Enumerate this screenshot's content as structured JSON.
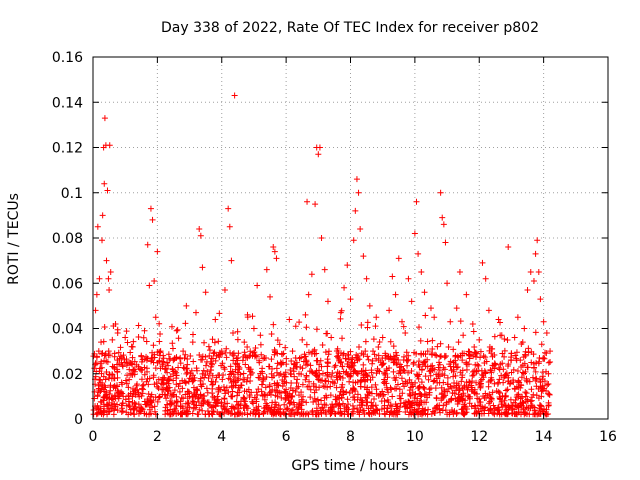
{
  "chart_data": {
    "type": "scatter",
    "title": "Day 338 of 2022, Rate Of TEC Index for receiver p802",
    "xlabel": "GPS time / hours",
    "ylabel": "ROTI / TECUs",
    "xlim": [
      0,
      16
    ],
    "ylim": [
      0,
      0.16
    ],
    "xticks": [
      0,
      2,
      4,
      6,
      8,
      10,
      12,
      14,
      16
    ],
    "xtick_labels": [
      "0",
      "2",
      "4",
      "6",
      "8",
      "10",
      "12",
      "14",
      "16"
    ],
    "yticks": [
      0,
      0.02,
      0.04,
      0.06,
      0.08,
      0.1,
      0.12,
      0.14,
      0.16
    ],
    "ytick_labels": [
      "0",
      "0.02",
      "0.04",
      "0.06",
      "0.08",
      "0.1",
      "0.12",
      "0.14",
      "0.16"
    ],
    "grid": true,
    "marker": "+",
    "color": "#ff0000",
    "data_x_range": [
      0,
      14.2
    ],
    "series": [
      {
        "name": "ROTI",
        "points": [
          [
            0.02,
            0.004
          ],
          [
            0.05,
            0.012
          ],
          [
            0.08,
            0.048
          ],
          [
            0.1,
            0.021
          ],
          [
            0.12,
            0.055
          ],
          [
            0.15,
            0.085
          ],
          [
            0.18,
            0.03
          ],
          [
            0.2,
            0.062
          ],
          [
            0.22,
            0.016
          ],
          [
            0.25,
            0.034
          ],
          [
            0.28,
            0.079
          ],
          [
            0.3,
            0.09
          ],
          [
            0.33,
            0.12
          ],
          [
            0.35,
            0.104
          ],
          [
            0.37,
            0.133
          ],
          [
            0.4,
            0.121
          ],
          [
            0.42,
            0.07
          ],
          [
            0.45,
            0.101
          ],
          [
            0.48,
            0.062
          ],
          [
            0.5,
            0.057
          ],
          [
            0.52,
            0.121
          ],
          [
            0.55,
            0.065
          ],
          [
            0.6,
            0.035
          ],
          [
            0.65,
            0.018
          ],
          [
            0.7,
            0.042
          ],
          [
            0.8,
            0.009
          ],
          [
            0.9,
            0.027
          ],
          [
            1.0,
            0.036
          ],
          [
            1.1,
            0.014
          ],
          [
            1.2,
            0.032
          ],
          [
            1.3,
            0.022
          ],
          [
            1.4,
            0.011
          ],
          [
            1.5,
            0.028
          ],
          [
            1.6,
            0.039
          ],
          [
            1.7,
            0.077
          ],
          [
            1.75,
            0.059
          ],
          [
            1.8,
            0.093
          ],
          [
            1.85,
            0.088
          ],
          [
            1.9,
            0.061
          ],
          [
            1.95,
            0.045
          ],
          [
            2.0,
            0.074
          ],
          [
            2.1,
            0.03
          ],
          [
            2.2,
            0.016
          ],
          [
            2.3,
            0.025
          ],
          [
            2.4,
            0.008
          ],
          [
            2.5,
            0.021
          ],
          [
            2.6,
            0.039
          ],
          [
            2.7,
            0.012
          ],
          [
            2.8,
            0.03
          ],
          [
            2.9,
            0.05
          ],
          [
            3.0,
            0.018
          ],
          [
            3.1,
            0.034
          ],
          [
            3.2,
            0.047
          ],
          [
            3.3,
            0.084
          ],
          [
            3.35,
            0.081
          ],
          [
            3.4,
            0.067
          ],
          [
            3.5,
            0.056
          ],
          [
            3.6,
            0.032
          ],
          [
            3.7,
            0.024
          ],
          [
            3.8,
            0.044
          ],
          [
            3.9,
            0.012
          ],
          [
            4.0,
            0.03
          ],
          [
            4.1,
            0.057
          ],
          [
            4.2,
            0.093
          ],
          [
            4.25,
            0.085
          ],
          [
            4.3,
            0.07
          ],
          [
            4.35,
            0.038
          ],
          [
            4.4,
            0.143
          ],
          [
            4.5,
            0.027
          ],
          [
            4.6,
            0.015
          ],
          [
            4.7,
            0.034
          ],
          [
            4.8,
            0.046
          ],
          [
            4.9,
            0.022
          ],
          [
            5.0,
            0.04
          ],
          [
            5.1,
            0.059
          ],
          [
            5.2,
            0.037
          ],
          [
            5.3,
            0.018
          ],
          [
            5.4,
            0.066
          ],
          [
            5.5,
            0.054
          ],
          [
            5.6,
            0.076
          ],
          [
            5.65,
            0.074
          ],
          [
            5.7,
            0.071
          ],
          [
            5.8,
            0.033
          ],
          [
            5.9,
            0.025
          ],
          [
            6.0,
            0.013
          ],
          [
            6.1,
            0.044
          ],
          [
            6.2,
            0.03
          ],
          [
            6.3,
            0.041
          ],
          [
            6.4,
            0.02
          ],
          [
            6.5,
            0.035
          ],
          [
            6.6,
            0.046
          ],
          [
            6.65,
            0.096
          ],
          [
            6.7,
            0.055
          ],
          [
            6.8,
            0.064
          ],
          [
            6.9,
            0.095
          ],
          [
            6.95,
            0.12
          ],
          [
            7.0,
            0.117
          ],
          [
            7.05,
            0.12
          ],
          [
            7.1,
            0.08
          ],
          [
            7.2,
            0.066
          ],
          [
            7.3,
            0.052
          ],
          [
            7.4,
            0.036
          ],
          [
            7.5,
            0.023
          ],
          [
            7.6,
            0.031
          ],
          [
            7.7,
            0.047
          ],
          [
            7.8,
            0.058
          ],
          [
            7.9,
            0.068
          ],
          [
            8.0,
            0.053
          ],
          [
            8.1,
            0.079
          ],
          [
            8.15,
            0.092
          ],
          [
            8.2,
            0.106
          ],
          [
            8.25,
            0.1
          ],
          [
            8.3,
            0.084
          ],
          [
            8.4,
            0.072
          ],
          [
            8.5,
            0.062
          ],
          [
            8.6,
            0.05
          ],
          [
            8.7,
            0.03
          ],
          [
            8.8,
            0.045
          ],
          [
            8.9,
            0.021
          ],
          [
            9.0,
            0.036
          ],
          [
            9.1,
            0.028
          ],
          [
            9.2,
            0.048
          ],
          [
            9.3,
            0.063
          ],
          [
            9.4,
            0.055
          ],
          [
            9.5,
            0.071
          ],
          [
            9.6,
            0.043
          ],
          [
            9.7,
            0.038
          ],
          [
            9.8,
            0.062
          ],
          [
            9.9,
            0.052
          ],
          [
            10.0,
            0.082
          ],
          [
            10.05,
            0.096
          ],
          [
            10.1,
            0.073
          ],
          [
            10.2,
            0.065
          ],
          [
            10.3,
            0.056
          ],
          [
            10.4,
            0.03
          ],
          [
            10.5,
            0.049
          ],
          [
            10.6,
            0.045
          ],
          [
            10.7,
            0.032
          ],
          [
            10.8,
            0.1
          ],
          [
            10.85,
            0.089
          ],
          [
            10.9,
            0.086
          ],
          [
            10.95,
            0.078
          ],
          [
            11.0,
            0.06
          ],
          [
            11.1,
            0.043
          ],
          [
            11.2,
            0.025
          ],
          [
            11.3,
            0.049
          ],
          [
            11.4,
            0.065
          ],
          [
            11.5,
            0.037
          ],
          [
            11.6,
            0.055
          ],
          [
            11.7,
            0.028
          ],
          [
            11.8,
            0.042
          ],
          [
            11.9,
            0.016
          ],
          [
            12.0,
            0.035
          ],
          [
            12.1,
            0.069
          ],
          [
            12.2,
            0.062
          ],
          [
            12.3,
            0.048
          ],
          [
            12.4,
            0.031
          ],
          [
            12.5,
            0.024
          ],
          [
            12.6,
            0.044
          ],
          [
            12.7,
            0.037
          ],
          [
            12.8,
            0.019
          ],
          [
            12.9,
            0.076
          ],
          [
            13.0,
            0.029
          ],
          [
            13.1,
            0.036
          ],
          [
            13.2,
            0.045
          ],
          [
            13.3,
            0.023
          ],
          [
            13.4,
            0.04
          ],
          [
            13.5,
            0.057
          ],
          [
            13.6,
            0.065
          ],
          [
            13.7,
            0.061
          ],
          [
            13.75,
            0.073
          ],
          [
            13.8,
            0.079
          ],
          [
            13.85,
            0.065
          ],
          [
            13.9,
            0.053
          ],
          [
            14.0,
            0.043
          ],
          [
            14.1,
            0.038
          ],
          [
            14.15,
            0.02
          ],
          [
            14.2,
            0.03
          ]
        ]
      }
    ],
    "dense_band": {
      "description_ranges": "baseline cloud of points spanning the full time range",
      "x_range": [
        0,
        14.2
      ],
      "y_range": [
        0.002,
        0.03
      ],
      "approx_count": 2200,
      "upper_envelope_note": "ROTI values mostly below 0.04, occasional bursts up to 0.143"
    }
  }
}
